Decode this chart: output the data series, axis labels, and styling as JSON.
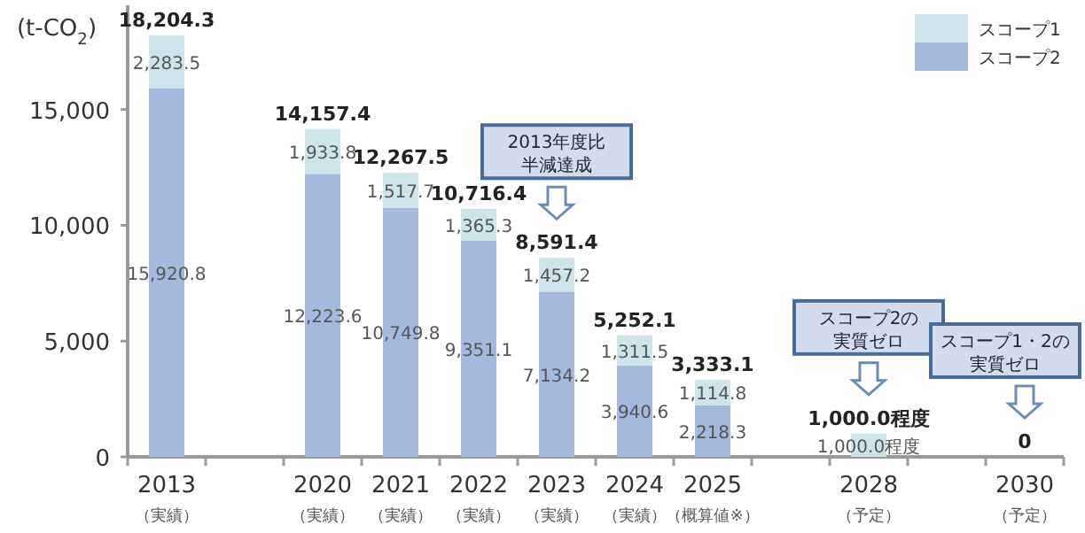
{
  "chart_data": {
    "type": "bar",
    "stacked": true,
    "ylabel": "(t-CO$_{2}$)",
    "categories": [
      "2013\n（実績）",
      null,
      "2020\n（実績）",
      "2021\n（実績）",
      "2022\n（実績）",
      "2023\n（実績）",
      "2024\n（実績）",
      "2025\n（概算値※）",
      null,
      "2028\n（予定）",
      null,
      "2030\n（予定）"
    ],
    "series": [
      {
        "name": "スコープ2",
        "color": "#a4b9dc",
        "values": [
          15920.8,
          null,
          12223.6,
          10749.8,
          9351.1,
          7134.2,
          3940.6,
          2218.3,
          null,
          null,
          null,
          null
        ],
        "value_labels": [
          "15,920.8",
          null,
          "12,223.6",
          "10,749.8",
          "9,351.1",
          "7,134.2",
          "3,940.6",
          "2,218.3",
          null,
          null,
          null,
          null
        ]
      },
      {
        "name": "スコープ1",
        "color": "#cfe3ea",
        "values": [
          2283.5,
          null,
          1933.8,
          1517.7,
          1365.3,
          1457.2,
          1311.5,
          1114.8,
          null,
          1000.0,
          null,
          0
        ],
        "value_labels": [
          "2,283.5",
          null,
          "1,933.8",
          "1,517.7",
          "1,365.3",
          "1,457.2",
          "1,311.5",
          "1,114.8",
          null,
          "1,000.0程度",
          null,
          null
        ]
      }
    ],
    "totals": [
      "18,204.3",
      null,
      "14,157.4",
      "12,267.5",
      "10,716.4",
      "8,591.4",
      "5,252.1",
      "3,333.1",
      null,
      "1,000.0程度",
      null,
      "0"
    ],
    "ylim": [
      0,
      19500
    ],
    "yticks": [
      {
        "value": 0,
        "label": "0"
      },
      {
        "value": 5000,
        "label": "5,000"
      },
      {
        "value": 10000,
        "label": "10,000"
      },
      {
        "value": 15000,
        "label": "15,000"
      }
    ],
    "legend": "top right",
    "annotations": [
      "2013年度比半減達成",
      "スコープ2の実質ゼロ",
      "スコープ1・2の実質ゼロ"
    ]
  }
}
